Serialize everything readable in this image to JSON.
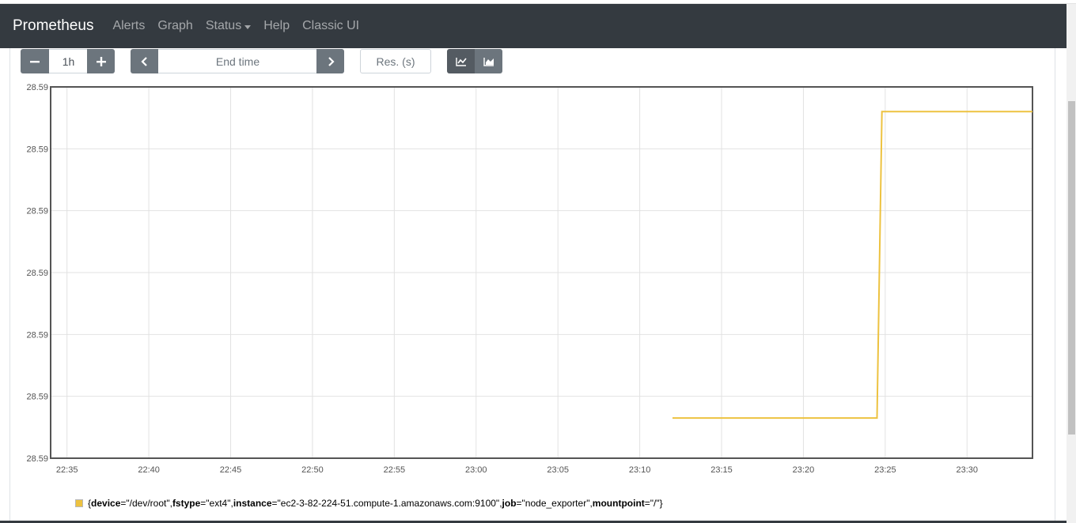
{
  "nav": {
    "brand": "Prometheus",
    "links": [
      {
        "label": "Alerts"
      },
      {
        "label": "Graph"
      },
      {
        "label": "Status"
      },
      {
        "label": "Help"
      },
      {
        "label": "Classic UI"
      }
    ]
  },
  "controls": {
    "decrease_icon": "minus-icon",
    "range_value": "1h",
    "increase_icon": "plus-icon",
    "back_icon": "chevron-left-icon",
    "end_time_placeholder": "End time",
    "forward_icon": "chevron-right-icon",
    "resolution_placeholder": "Res. (s)",
    "chart_modes": [
      {
        "icon": "line-chart-icon",
        "active": true
      },
      {
        "icon": "stacked-chart-icon",
        "active": false
      }
    ]
  },
  "colors": {
    "navbar": "#343a40",
    "series": "#edc240",
    "button": "#6c757d",
    "button_active": "#545b62"
  },
  "chart_data": {
    "type": "line",
    "y_tick_labels": [
      "28.59",
      "28.59",
      "28.59",
      "28.59",
      "28.59",
      "28.59",
      "28.59"
    ],
    "x_tick_labels": [
      "22:35",
      "22:40",
      "22:45",
      "22:50",
      "22:55",
      "23:00",
      "23:05",
      "23:10",
      "23:15",
      "23:20",
      "23:25",
      "23:30"
    ],
    "x_range": [
      "22:34",
      "23:34"
    ],
    "y_range": [
      0,
      6
    ],
    "grid": true,
    "series": [
      {
        "color": "#edc240",
        "points": [
          {
            "x": "23:12",
            "y": 0.65
          },
          {
            "x": "23:24.5",
            "y": 0.65
          },
          {
            "x": "23:24.8",
            "y": 5.6
          },
          {
            "x": "23:34",
            "y": 5.6
          }
        ]
      }
    ]
  },
  "legend": {
    "open": "{",
    "items": [
      {
        "key": "device",
        "value": "=\"/dev/root\", "
      },
      {
        "key": "fstype",
        "value": "=\"ext4\", "
      },
      {
        "key": "instance",
        "value": "=\"ec2-3-82-224-51.compute-1.amazonaws.com:9100\", "
      },
      {
        "key": "job",
        "value": "=\"node_exporter\", "
      },
      {
        "key": "mountpoint",
        "value": "=\"/\""
      }
    ],
    "close": "}"
  }
}
